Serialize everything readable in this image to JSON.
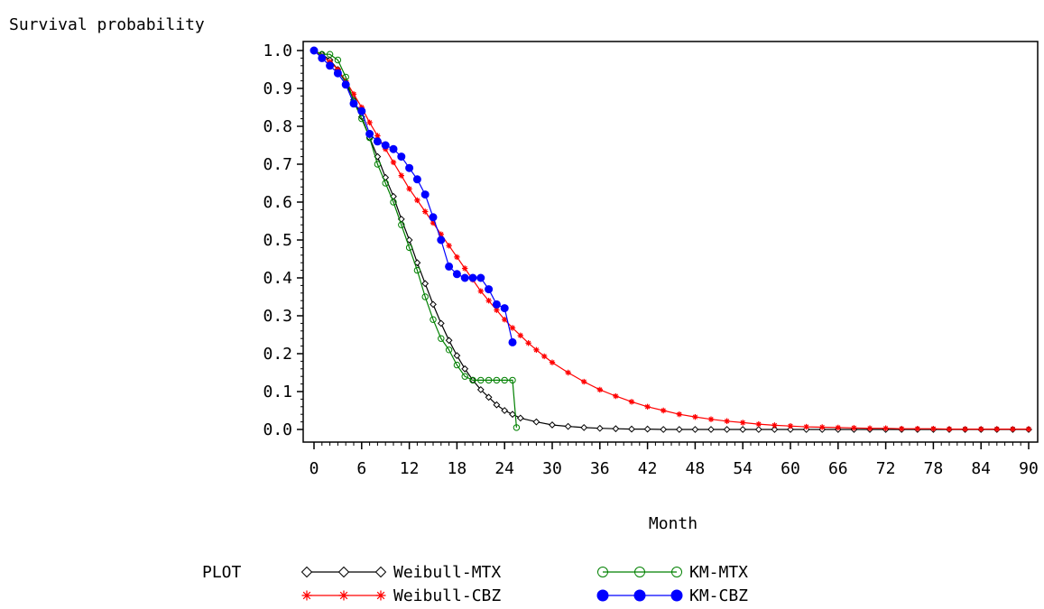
{
  "chart_data": {
    "type": "line",
    "ylabel": "Survival probability",
    "xlabel": "Month",
    "xlim": [
      0,
      90
    ],
    "ylim": [
      0,
      1
    ],
    "x_ticks": [
      "0",
      "6",
      "12",
      "18",
      "24",
      "30",
      "36",
      "42",
      "48",
      "54",
      "60",
      "66",
      "72",
      "78",
      "84",
      "90"
    ],
    "y_ticks": [
      "0.0",
      "0.1",
      "0.2",
      "0.3",
      "0.4",
      "0.5",
      "0.6",
      "0.7",
      "0.8",
      "0.9",
      "1.0"
    ],
    "grid": false,
    "legend_title": "PLOT",
    "legend_placement": "bottom",
    "series": [
      {
        "name": "Weibull-MTX",
        "color": "#000000",
        "marker": "diamond",
        "x": [
          0,
          1,
          2,
          3,
          4,
          5,
          6,
          7,
          8,
          9,
          10,
          11,
          12,
          13,
          14,
          15,
          16,
          17,
          18,
          19,
          20,
          21,
          22,
          23,
          24,
          25,
          26,
          28,
          30,
          32,
          34,
          36,
          38,
          40,
          42,
          44,
          46,
          48,
          50,
          52,
          54,
          56,
          58,
          60,
          62,
          64,
          66,
          68,
          70,
          72,
          74,
          76,
          78,
          80,
          82,
          84,
          86,
          88,
          90
        ],
        "y": [
          1.0,
          0.99,
          0.975,
          0.95,
          0.915,
          0.87,
          0.825,
          0.77,
          0.72,
          0.665,
          0.615,
          0.555,
          0.5,
          0.44,
          0.385,
          0.33,
          0.28,
          0.235,
          0.195,
          0.16,
          0.13,
          0.105,
          0.085,
          0.065,
          0.05,
          0.04,
          0.03,
          0.02,
          0.012,
          0.008,
          0.005,
          0.003,
          0.002,
          0.001,
          0.001,
          0.0,
          0.0,
          0.0,
          0.0,
          0.0,
          0.0,
          0.0,
          0.0,
          0.0,
          0.0,
          0.0,
          0.0,
          0.0,
          0.0,
          0.0,
          0.0,
          0.0,
          0.0,
          0.0,
          0.0,
          0.0,
          0.0,
          0.0,
          0.0
        ]
      },
      {
        "name": "Weibull-CBZ",
        "color": "#ff0000",
        "marker": "star",
        "x": [
          0,
          1,
          2,
          3,
          4,
          5,
          6,
          7,
          8,
          9,
          10,
          11,
          12,
          13,
          14,
          15,
          16,
          17,
          18,
          19,
          20,
          21,
          22,
          23,
          24,
          25,
          26,
          27,
          28,
          29,
          30,
          32,
          34,
          36,
          38,
          40,
          42,
          44,
          46,
          48,
          50,
          52,
          54,
          56,
          58,
          60,
          62,
          64,
          66,
          68,
          70,
          72,
          74,
          76,
          78,
          80,
          82,
          84,
          86,
          88,
          90
        ],
        "y": [
          1.0,
          0.985,
          0.97,
          0.95,
          0.92,
          0.885,
          0.85,
          0.81,
          0.775,
          0.74,
          0.705,
          0.67,
          0.635,
          0.605,
          0.575,
          0.545,
          0.515,
          0.485,
          0.455,
          0.425,
          0.395,
          0.365,
          0.34,
          0.315,
          0.29,
          0.268,
          0.248,
          0.228,
          0.21,
          0.193,
          0.177,
          0.15,
          0.126,
          0.105,
          0.088,
          0.073,
          0.06,
          0.05,
          0.04,
          0.033,
          0.027,
          0.022,
          0.018,
          0.014,
          0.011,
          0.009,
          0.007,
          0.006,
          0.005,
          0.004,
          0.003,
          0.003,
          0.002,
          0.002,
          0.002,
          0.001,
          0.001,
          0.001,
          0.001,
          0.001,
          0.001
        ]
      },
      {
        "name": "KM-MTX",
        "color": "#008000",
        "marker": "circle",
        "x": [
          0,
          1,
          2,
          3,
          4,
          5,
          6,
          7,
          8,
          9,
          10,
          11,
          12,
          13,
          14,
          15,
          16,
          17,
          18,
          19,
          20,
          21,
          22,
          23,
          24,
          25,
          25.5
        ],
        "y": [
          1.0,
          0.99,
          0.99,
          0.975,
          0.93,
          0.865,
          0.82,
          0.77,
          0.7,
          0.65,
          0.6,
          0.54,
          0.48,
          0.42,
          0.35,
          0.29,
          0.24,
          0.21,
          0.17,
          0.14,
          0.13,
          0.13,
          0.13,
          0.13,
          0.13,
          0.13,
          0.005
        ]
      },
      {
        "name": "KM-CBZ",
        "color": "#0000ff",
        "marker": "filled-circle",
        "x": [
          0,
          1,
          2,
          3,
          4,
          5,
          6,
          7,
          8,
          9,
          10,
          11,
          12,
          13,
          14,
          15,
          16,
          17,
          18,
          19,
          20,
          21,
          22,
          23,
          24,
          25
        ],
        "y": [
          1.0,
          0.98,
          0.96,
          0.94,
          0.91,
          0.86,
          0.84,
          0.78,
          0.76,
          0.75,
          0.74,
          0.72,
          0.69,
          0.66,
          0.62,
          0.56,
          0.5,
          0.43,
          0.41,
          0.4,
          0.4,
          0.4,
          0.37,
          0.33,
          0.32,
          0.23
        ]
      }
    ]
  }
}
